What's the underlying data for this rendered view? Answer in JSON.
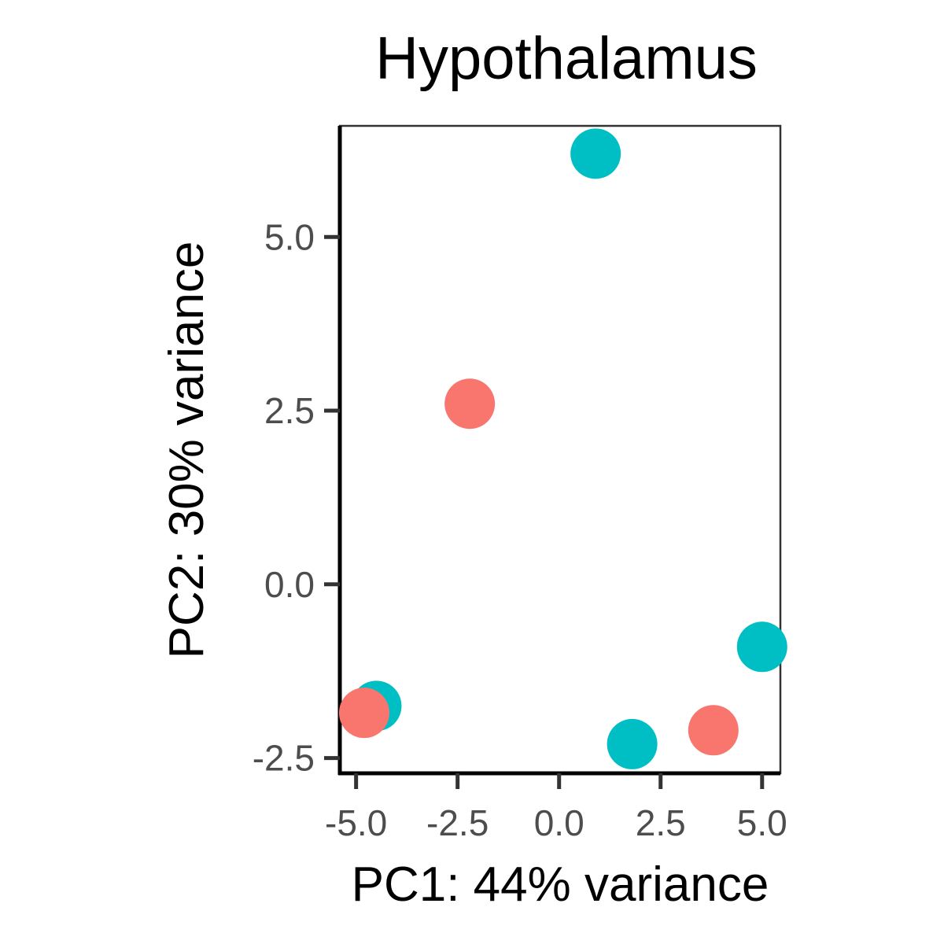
{
  "chart_data": {
    "type": "scatter",
    "title": "Hypothalamus",
    "xlabel": "PC1: 44% variance",
    "ylabel": "PC2: 30% variance",
    "xlim": [
      -5.4,
      5.45
    ],
    "ylim": [
      -2.72,
      6.6
    ],
    "x_ticks": [
      -5.0,
      -2.5,
      0.0,
      2.5,
      5.0
    ],
    "x_tick_labels": [
      "-5.0",
      "-2.5",
      "0.0",
      "2.5",
      "5.0"
    ],
    "y_ticks": [
      -2.5,
      0.0,
      2.5,
      5.0
    ],
    "y_tick_labels": [
      "-2.5",
      "0.0",
      "2.5",
      "5.0"
    ],
    "grid": false,
    "legend": "none",
    "colors": [
      "#f8766d",
      "#00bfc4"
    ],
    "series": [
      {
        "color": "#f8766d",
        "points": [
          {
            "x": -2.2,
            "y": 2.6
          },
          {
            "x": -4.8,
            "y": -1.85
          },
          {
            "x": 3.8,
            "y": -2.1
          }
        ]
      },
      {
        "color": "#00bfc4",
        "points": [
          {
            "x": 0.9,
            "y": 6.2
          },
          {
            "x": -4.5,
            "y": -1.75
          },
          {
            "x": 1.8,
            "y": -2.3
          },
          {
            "x": 5.0,
            "y": -0.9
          }
        ]
      }
    ]
  }
}
